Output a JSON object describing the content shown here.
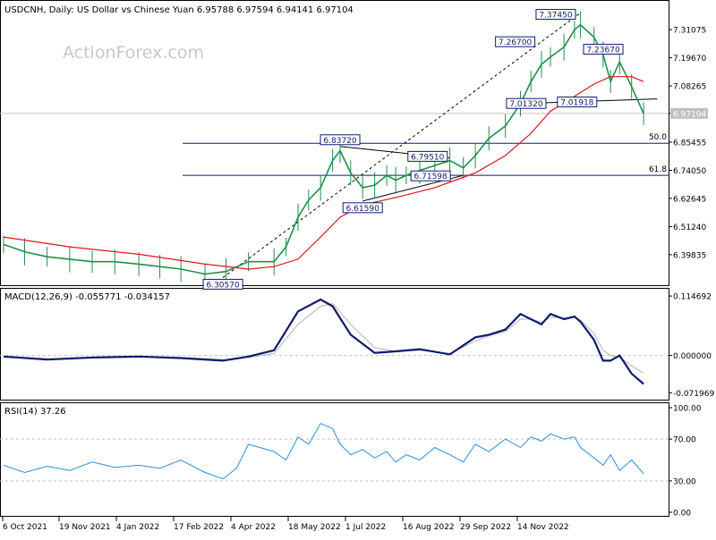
{
  "header": {
    "symbol_line": "USDCNH, Daily:  US Dollar vs Chinese Yuan  6.95788 6.97594 6.94141 6.97104",
    "watermark": "ActionForex.com"
  },
  "colors": {
    "candle": "#1f8f4a",
    "ma": "#e0141e",
    "macd": "#0d1b6e",
    "signal": "#b3b3b3",
    "rsi": "#2f8fd8",
    "axis": "#000000",
    "level_box": "#0d1b6e"
  },
  "chart_data": [
    {
      "type": "line",
      "panel": "price",
      "title": "USDCNH, Daily:  US Dollar vs Chinese Yuan  6.95788 6.97594 6.94141 6.97104",
      "ylim": [
        6.3,
        7.38
      ],
      "y_ticks": [
        "7.31075",
        "7.19670",
        "7.08265",
        "6.97104",
        "6.85455",
        "6.74050",
        "6.62645",
        "6.51240",
        "6.39835"
      ],
      "current_price": "6.97104",
      "x_ticks": [
        "6 Oct 2021",
        "19 Nov 2021",
        "4 Jan 2022",
        "17 Feb 2022",
        "4 Apr 2022",
        "18 May 2022",
        "1 Jul 2022",
        "16 Aug 2022",
        "29 Sep 2022",
        "14 Nov 2022"
      ],
      "series": [
        {
          "role": "price",
          "x": [
            "2021-10-06",
            "2021-10-20",
            "2021-11-04",
            "2021-11-19",
            "2021-12-04",
            "2021-12-19",
            "2022-01-04",
            "2022-01-18",
            "2022-02-01",
            "2022-02-17",
            "2022-03-03",
            "2022-03-18",
            "2022-04-04",
            "2022-04-12",
            "2022-04-20",
            "2022-04-27",
            "2022-05-05",
            "2022-05-13",
            "2022-05-18",
            "2022-05-25",
            "2022-06-02",
            "2022-06-10",
            "2022-06-18",
            "2022-06-24",
            "2022-07-01",
            "2022-07-10",
            "2022-07-20",
            "2022-07-30",
            "2022-08-08",
            "2022-08-16",
            "2022-08-25",
            "2022-09-05",
            "2022-09-15",
            "2022-09-22",
            "2022-09-29",
            "2022-10-05",
            "2022-10-14",
            "2022-10-21",
            "2022-10-25",
            "2022-11-03",
            "2022-11-09",
            "2022-11-14",
            "2022-11-20",
            "2022-11-28",
            "2022-12-06"
          ],
          "values": [
            6.44,
            6.41,
            6.39,
            6.38,
            6.37,
            6.37,
            6.36,
            6.35,
            6.34,
            6.32,
            6.33,
            6.37,
            6.37,
            6.43,
            6.55,
            6.62,
            6.67,
            6.78,
            6.82,
            6.73,
            6.67,
            6.68,
            6.72,
            6.7,
            6.72,
            6.74,
            6.76,
            6.78,
            6.75,
            6.8,
            6.87,
            6.92,
            7.01,
            7.1,
            7.17,
            7.2,
            7.24,
            7.31,
            7.33,
            7.28,
            7.21,
            7.1,
            7.18,
            7.08,
            6.97
          ]
        },
        {
          "role": "moving-average",
          "x": [
            "2021-10-06",
            "2021-11-19",
            "2022-01-04",
            "2022-02-17",
            "2022-03-18",
            "2022-04-04",
            "2022-04-20",
            "2022-05-05",
            "2022-05-18",
            "2022-06-02",
            "2022-06-24",
            "2022-07-20",
            "2022-08-16",
            "2022-09-05",
            "2022-09-22",
            "2022-10-05",
            "2022-10-21",
            "2022-11-03",
            "2022-11-14",
            "2022-11-28",
            "2022-12-06"
          ],
          "values": [
            6.47,
            6.43,
            6.4,
            6.36,
            6.34,
            6.35,
            6.38,
            6.47,
            6.55,
            6.6,
            6.63,
            6.67,
            6.73,
            6.8,
            6.89,
            6.98,
            7.04,
            7.09,
            7.12,
            7.12,
            7.1
          ]
        }
      ],
      "fibonacci": [
        {
          "label": "50.0",
          "value": 6.85
        },
        {
          "label": "61.8",
          "value": 6.72
        }
      ],
      "annotations": [
        {
          "text": "7.37450",
          "x": "2022-10-24",
          "value": 7.3745
        },
        {
          "text": "7.26700",
          "x": "2022-09-27",
          "value": 7.267
        },
        {
          "text": "7.23670",
          "x": "2022-11-02",
          "value": 7.2367
        },
        {
          "text": "7.01320",
          "x": "2022-09-26",
          "value": 7.0132
        },
        {
          "text": "7.01918",
          "x": "2022-10-12",
          "value": 7.01918
        },
        {
          "text": "6.83720",
          "x": "2022-05-18",
          "value": 6.8372
        },
        {
          "text": "6.79510",
          "x": "2022-07-20",
          "value": 6.7951
        },
        {
          "text": "6.71598",
          "x": "2022-07-22",
          "value": 6.71598
        },
        {
          "text": "6.61590",
          "x": "2022-06-02",
          "value": 6.6159
        },
        {
          "text": "6.30570",
          "x": "2022-03-01",
          "value": 6.3057
        }
      ]
    },
    {
      "type": "line",
      "panel": "macd",
      "title": "MACD(12,26,9) -0.055771 -0.034157",
      "ylim": [
        -0.08,
        0.12
      ],
      "y_ticks": [
        "0.114692",
        "0.000000",
        "-0.071969"
      ],
      "series": [
        {
          "role": "macd",
          "x": [
            "2021-10-06",
            "2021-11-04",
            "2021-12-04",
            "2022-01-04",
            "2022-02-01",
            "2022-03-01",
            "2022-03-18",
            "2022-04-04",
            "2022-04-20",
            "2022-05-05",
            "2022-05-13",
            "2022-05-25",
            "2022-06-10",
            "2022-06-24",
            "2022-07-10",
            "2022-07-30",
            "2022-08-16",
            "2022-08-25",
            "2022-09-05",
            "2022-09-15",
            "2022-09-22",
            "2022-09-29",
            "2022-10-05",
            "2022-10-14",
            "2022-10-21",
            "2022-10-25",
            "2022-11-03",
            "2022-11-09",
            "2022-11-14",
            "2022-11-20",
            "2022-11-28",
            "2022-12-06"
          ],
          "values": [
            -0.002,
            -0.008,
            -0.004,
            -0.002,
            -0.005,
            -0.01,
            -0.002,
            0.01,
            0.085,
            0.108,
            0.095,
            0.04,
            0.005,
            0.008,
            0.012,
            0.002,
            0.035,
            0.04,
            0.05,
            0.08,
            0.07,
            0.06,
            0.08,
            0.07,
            0.075,
            0.065,
            0.03,
            -0.01,
            -0.01,
            0.0,
            -0.035,
            -0.055
          ]
        },
        {
          "role": "signal",
          "x": [
            "2021-10-06",
            "2021-11-04",
            "2021-12-04",
            "2022-01-04",
            "2022-02-01",
            "2022-03-01",
            "2022-03-18",
            "2022-04-04",
            "2022-04-20",
            "2022-05-05",
            "2022-05-13",
            "2022-05-25",
            "2022-06-10",
            "2022-06-24",
            "2022-07-10",
            "2022-07-30",
            "2022-08-16",
            "2022-08-25",
            "2022-09-05",
            "2022-09-15",
            "2022-09-22",
            "2022-09-29",
            "2022-10-05",
            "2022-10-14",
            "2022-10-21",
            "2022-10-25",
            "2022-11-03",
            "2022-11-09",
            "2022-11-14",
            "2022-11-20",
            "2022-11-28",
            "2022-12-06"
          ],
          "values": [
            -0.001,
            -0.006,
            -0.005,
            -0.003,
            -0.004,
            -0.008,
            -0.004,
            0.004,
            0.06,
            0.095,
            0.1,
            0.06,
            0.015,
            0.008,
            0.01,
            0.004,
            0.028,
            0.038,
            0.046,
            0.07,
            0.07,
            0.064,
            0.074,
            0.072,
            0.074,
            0.068,
            0.042,
            0.01,
            0.0,
            -0.004,
            -0.02,
            -0.034
          ]
        }
      ]
    },
    {
      "type": "line",
      "panel": "rsi",
      "title": "RSI(14) 37.26",
      "ylim": [
        0,
        100
      ],
      "y_ticks": [
        "100.00",
        "70.00",
        "30.00",
        "0.00"
      ],
      "levels": [
        70,
        30
      ],
      "series": [
        {
          "role": "rsi",
          "x": [
            "2021-10-06",
            "2021-10-20",
            "2021-11-04",
            "2021-11-19",
            "2021-12-04",
            "2021-12-19",
            "2022-01-04",
            "2022-01-18",
            "2022-02-01",
            "2022-02-17",
            "2022-03-01",
            "2022-03-10",
            "2022-03-18",
            "2022-04-04",
            "2022-04-12",
            "2022-04-20",
            "2022-04-27",
            "2022-05-05",
            "2022-05-13",
            "2022-05-18",
            "2022-05-25",
            "2022-06-02",
            "2022-06-10",
            "2022-06-18",
            "2022-06-24",
            "2022-07-01",
            "2022-07-10",
            "2022-07-20",
            "2022-07-30",
            "2022-08-08",
            "2022-08-16",
            "2022-08-25",
            "2022-09-05",
            "2022-09-15",
            "2022-09-22",
            "2022-09-29",
            "2022-10-05",
            "2022-10-14",
            "2022-10-21",
            "2022-10-25",
            "2022-11-03",
            "2022-11-09",
            "2022-11-14",
            "2022-11-20",
            "2022-11-28",
            "2022-12-06"
          ],
          "values": [
            45,
            38,
            44,
            40,
            48,
            43,
            45,
            42,
            50,
            38,
            32,
            42,
            65,
            58,
            50,
            72,
            65,
            85,
            80,
            65,
            55,
            60,
            52,
            58,
            48,
            55,
            50,
            62,
            55,
            48,
            65,
            58,
            70,
            62,
            72,
            68,
            75,
            70,
            72,
            62,
            52,
            45,
            55,
            40,
            50,
            37
          ]
        }
      ]
    }
  ]
}
